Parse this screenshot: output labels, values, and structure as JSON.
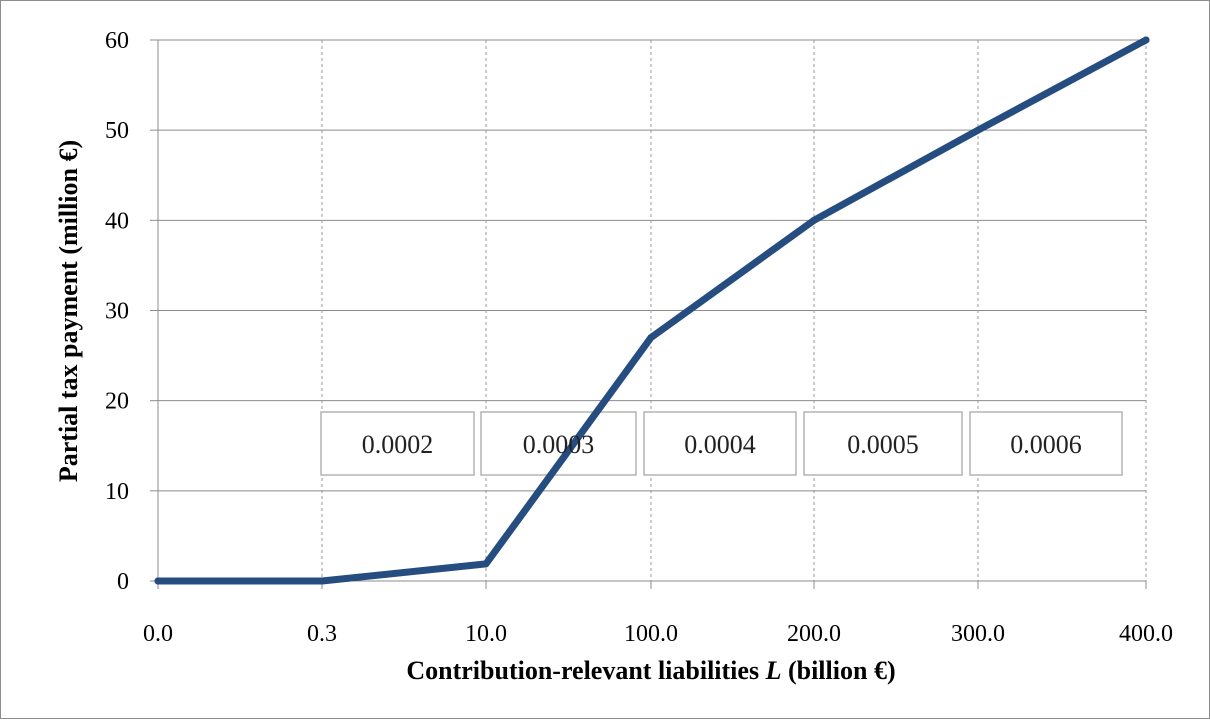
{
  "chart_data": {
    "type": "line",
    "title": "",
    "xlabel": "Contribution-relevant liabilities L (billion €)",
    "xlabel_parts": {
      "before": "Contribution-relevant liabilities ",
      "italic": "L",
      "after": " (billion €)"
    },
    "ylabel": "Partial tax payment (million €)",
    "x_categories": [
      "0.0",
      "0.3",
      "10.0",
      "100.0",
      "200.0",
      "300.0",
      "400.0"
    ],
    "y_ticks": [
      "0",
      "10",
      "20",
      "30",
      "40",
      "50",
      "60"
    ],
    "ylim": [
      0,
      60
    ],
    "grid": {
      "horizontal": "solid",
      "vertical": "dashed"
    },
    "series": [
      {
        "points": [
          {
            "x": "0.0",
            "y": 0
          },
          {
            "x": "0.3",
            "y": 0
          },
          {
            "x": "10.0",
            "y": 1.9
          },
          {
            "x": "100.0",
            "y": 27.0
          },
          {
            "x": "200.0",
            "y": 40.0
          },
          {
            "x": "300.0",
            "y": 50.0
          },
          {
            "x": "400.0",
            "y": 60.0
          }
        ],
        "color": "#264d80"
      }
    ],
    "annotations": [
      "0.0002",
      "0.0003",
      "0.0004",
      "0.0005",
      "0.0006"
    ]
  }
}
